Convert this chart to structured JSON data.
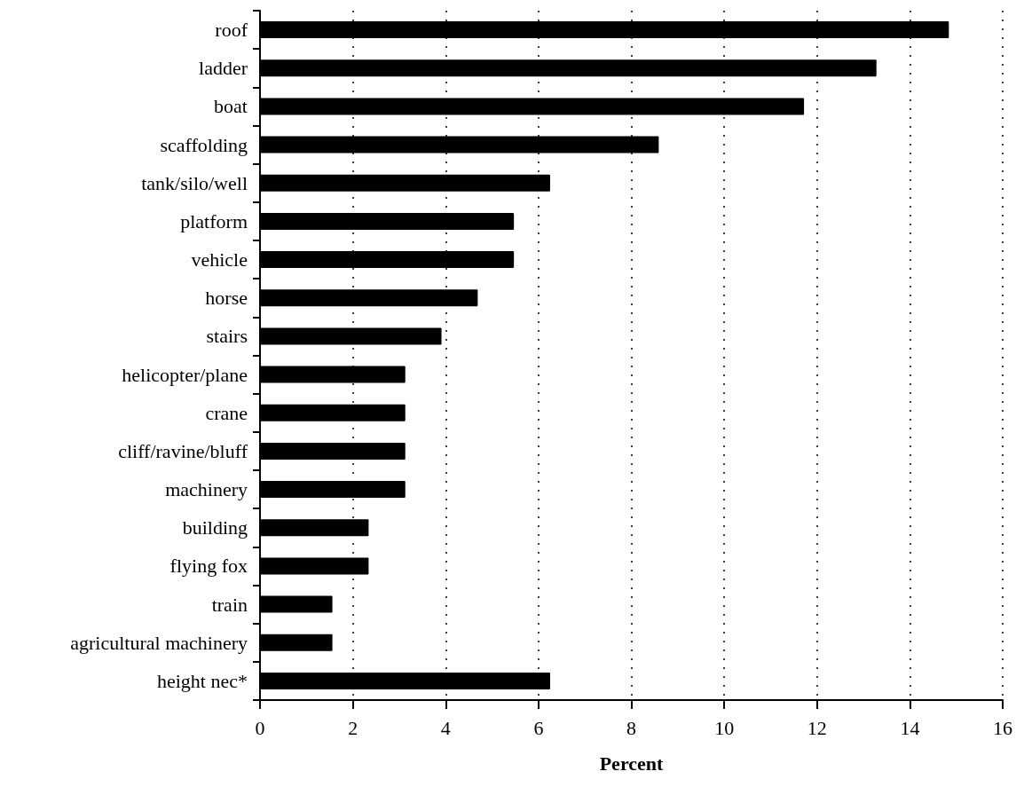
{
  "chart_data": {
    "type": "bar",
    "orientation": "horizontal",
    "xlabel": "Percent",
    "categories": [
      "roof",
      "ladder",
      "boat",
      "scaffolding",
      "tank/silo/well",
      "platform",
      "vehicle",
      "horse",
      "stairs",
      "helicopter/plane",
      "crane",
      "cliff/ravine/bluff",
      "machinery",
      "building",
      "flying fox",
      "train",
      "agricultural machinery",
      "height nec*"
    ],
    "values": [
      14.84,
      13.28,
      11.72,
      8.59,
      6.25,
      5.47,
      5.47,
      4.69,
      3.91,
      3.13,
      3.13,
      3.13,
      3.13,
      2.34,
      2.34,
      1.56,
      1.56,
      6.25
    ],
    "color": "#000000",
    "xlim": [
      0,
      16
    ],
    "xticks": [
      0,
      2,
      4,
      6,
      8,
      10,
      12,
      14,
      16
    ],
    "grid": "x"
  }
}
